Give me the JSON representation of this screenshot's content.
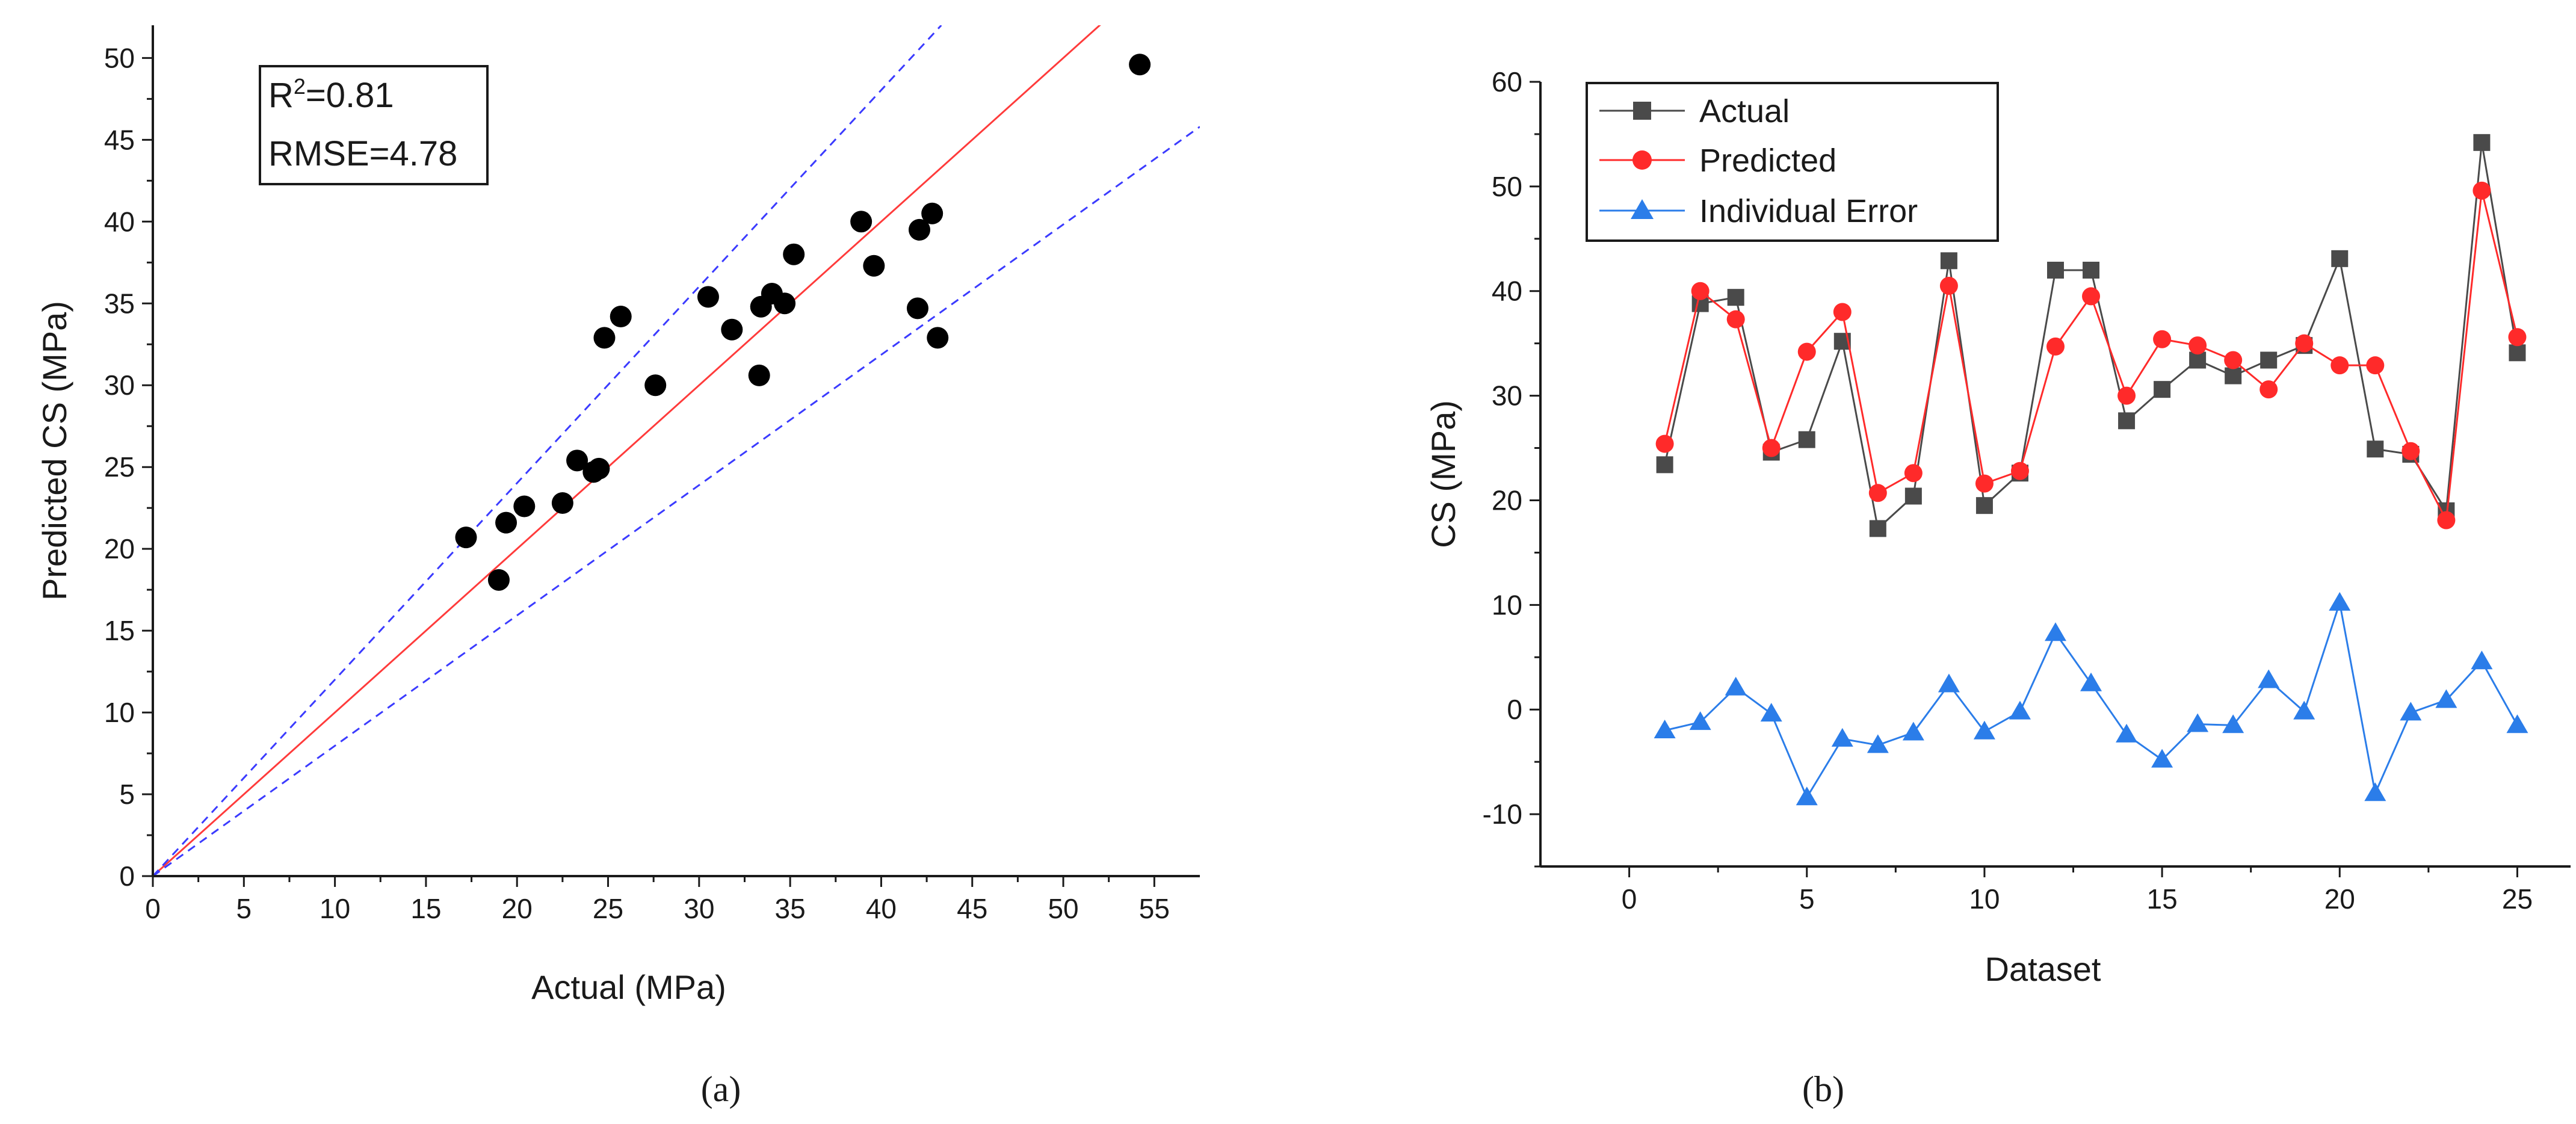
{
  "colors": {
    "axis": "#1a1a1a",
    "points": "#000000",
    "ideal_line": "#ff3b3b",
    "bound_lines": "#3b3bff",
    "actual": "#4a4a4a",
    "predicted": "#ff2a2a",
    "error": "#2b7de9"
  },
  "chart_data": [
    {
      "id": "a",
      "type": "scatter",
      "caption": "(a)",
      "xlabel": "Actual (MPa)",
      "ylabel": "Predicted CS (MPa)",
      "xlim": [
        0,
        57.5
      ],
      "ylim": [
        0,
        52
      ],
      "xticks": [
        0,
        5,
        10,
        15,
        20,
        25,
        30,
        35,
        40,
        45,
        50,
        55
      ],
      "yticks": [
        0,
        5,
        10,
        15,
        20,
        25,
        30,
        35,
        40,
        45,
        50
      ],
      "annotation": {
        "r2_prefix": "R",
        "r2_sup": "2",
        "r2_value": "=0.81",
        "rmse": "RMSE=4.78"
      },
      "points": [
        [
          17.2,
          20.7
        ],
        [
          19.0,
          18.1
        ],
        [
          19.4,
          21.6
        ],
        [
          20.4,
          22.6
        ],
        [
          22.5,
          22.8
        ],
        [
          23.3,
          25.4
        ],
        [
          24.2,
          24.7
        ],
        [
          24.5,
          24.9
        ],
        [
          24.8,
          32.9
        ],
        [
          25.7,
          34.2
        ],
        [
          27.6,
          30.0
        ],
        [
          30.5,
          35.4
        ],
        [
          31.8,
          33.4
        ],
        [
          33.3,
          30.6
        ],
        [
          33.4,
          34.8
        ],
        [
          34.0,
          35.6
        ],
        [
          34.7,
          35.0
        ],
        [
          35.2,
          38.0
        ],
        [
          38.9,
          40.0
        ],
        [
          39.6,
          37.3
        ],
        [
          42.0,
          34.7
        ],
        [
          42.1,
          39.5
        ],
        [
          42.8,
          40.5
        ],
        [
          43.1,
          32.9
        ],
        [
          54.2,
          49.6
        ]
      ],
      "lines": [
        {
          "name": "ideal",
          "from": [
            0,
            0
          ],
          "to": [
            52.3,
            52.3
          ],
          "style": "solid"
        },
        {
          "name": "upper bound",
          "from": [
            0,
            0
          ],
          "to": [
            43.3,
            52
          ],
          "style": "dashed"
        },
        {
          "name": "lower bound",
          "from": [
            0,
            0
          ],
          "to": [
            57.5,
            45.8
          ],
          "style": "dashed"
        }
      ]
    },
    {
      "id": "b",
      "type": "line",
      "caption": "(b)",
      "xlabel": "Dataset",
      "ylabel": "CS (MPa)",
      "xlim": [
        -2.5,
        26.5
      ],
      "ylim": [
        -15,
        60
      ],
      "xticks": [
        0,
        5,
        10,
        15,
        20,
        25
      ],
      "yticks": [
        -10,
        0,
        10,
        20,
        30,
        40,
        50,
        60
      ],
      "x": [
        1,
        2,
        3,
        4,
        5,
        6,
        7,
        8,
        9,
        10,
        11,
        12,
        13,
        14,
        15,
        16,
        17,
        18,
        19,
        20,
        21,
        22,
        23,
        24,
        25
      ],
      "series": [
        {
          "name": "Actual",
          "marker": "square",
          "values": [
            23.4,
            38.8,
            39.4,
            24.6,
            25.8,
            35.2,
            17.3,
            20.4,
            42.9,
            19.5,
            22.6,
            42.0,
            42.0,
            27.6,
            30.6,
            33.4,
            31.9,
            33.4,
            34.8,
            43.1,
            24.9,
            24.4,
            19.0,
            54.2,
            34.1
          ]
        },
        {
          "name": "Predicted",
          "marker": "circle",
          "values": [
            25.4,
            40.0,
            37.3,
            25.0,
            34.2,
            38.0,
            20.7,
            22.6,
            40.5,
            21.6,
            22.8,
            34.7,
            39.5,
            30.0,
            35.4,
            34.8,
            33.4,
            30.6,
            35.0,
            32.9,
            32.9,
            24.7,
            18.1,
            49.6,
            35.6
          ]
        },
        {
          "name": "Individual Error",
          "marker": "triangle",
          "values": [
            -2.0,
            -1.2,
            2.1,
            -0.4,
            -8.4,
            -2.8,
            -3.4,
            -2.2,
            2.4,
            -2.1,
            -0.2,
            7.3,
            2.5,
            -2.4,
            -4.8,
            -1.4,
            -1.5,
            2.8,
            -0.2,
            10.2,
            -8.0,
            -0.3,
            0.9,
            4.6,
            -1.5
          ]
        }
      ]
    }
  ]
}
